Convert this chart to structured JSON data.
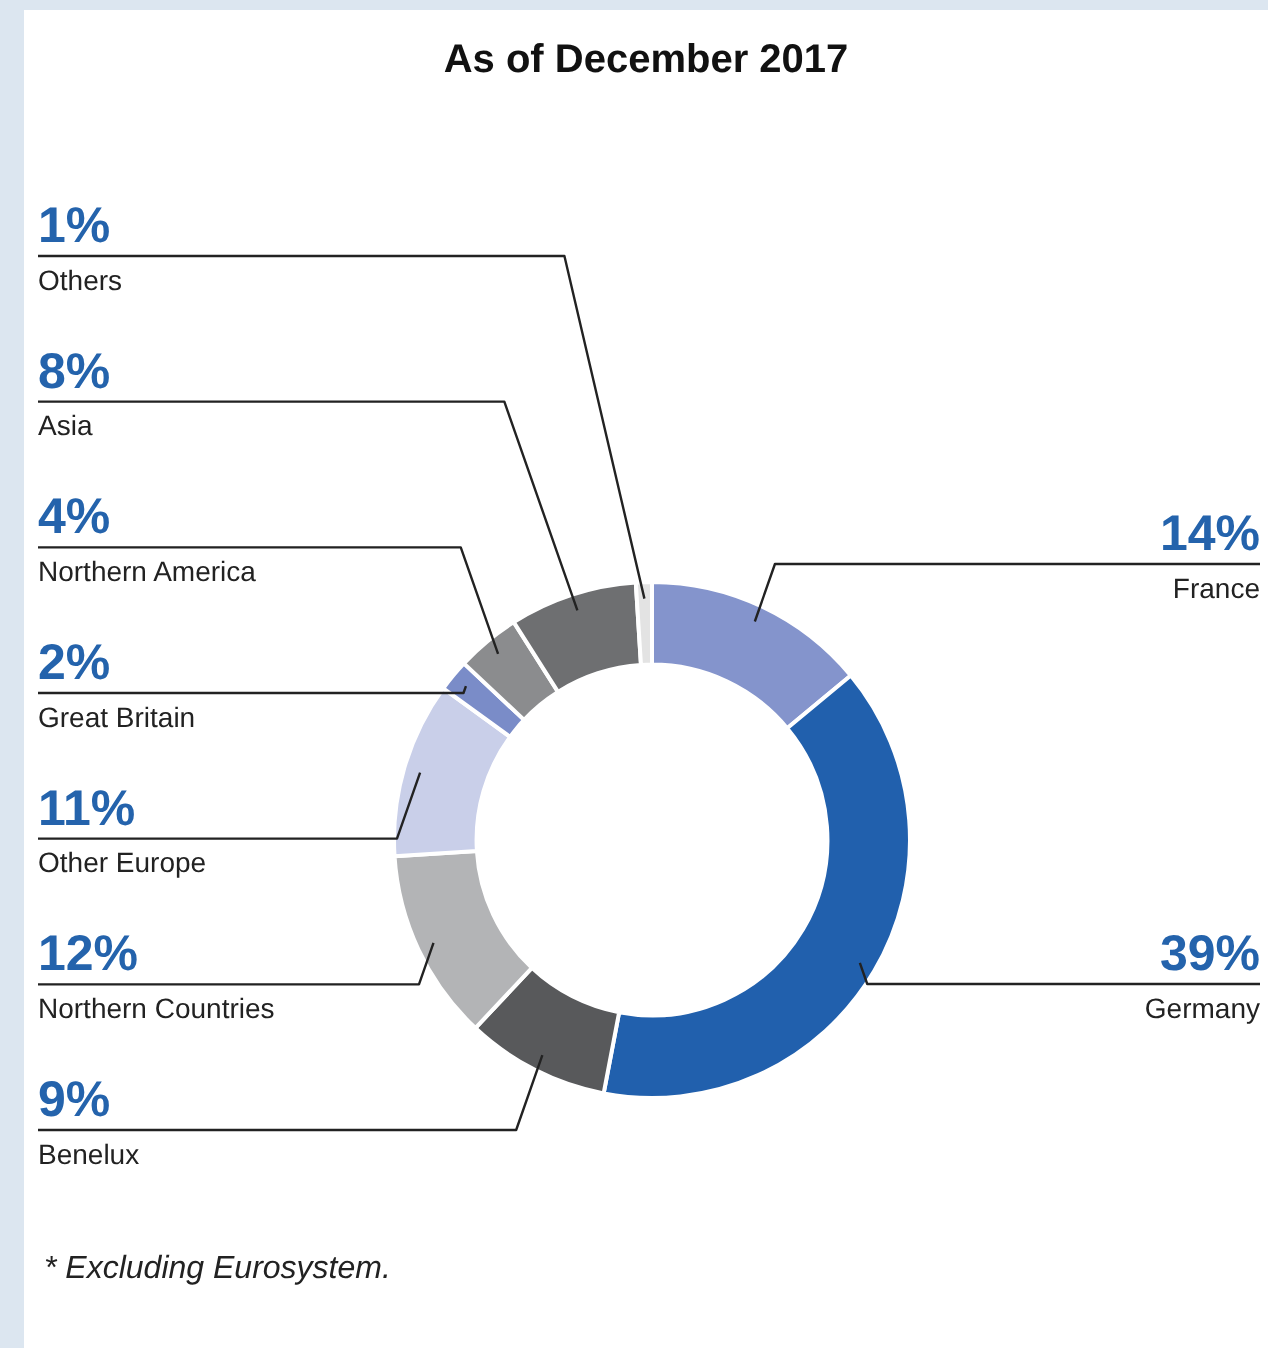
{
  "chart_data": {
    "type": "donut",
    "title": "As of December 2017",
    "categories": [
      "France",
      "Germany",
      "Benelux",
      "Northern Countries",
      "Other Europe",
      "Great Britain",
      "Northern America",
      "Asia",
      "Others"
    ],
    "values": [
      14,
      39,
      9,
      12,
      11,
      2,
      4,
      8,
      1
    ],
    "value_labels": [
      "14%",
      "39%",
      "9%",
      "12%",
      "11%",
      "2%",
      "4%",
      "8%",
      "1%"
    ],
    "colors": [
      "#8494cc",
      "#2160ad",
      "#58595b",
      "#b3b4b6",
      "#c9cfe9",
      "#7a8cc8",
      "#8b8c8e",
      "#6e6f71",
      "#e3e3e3"
    ],
    "annotations": [
      "* Excluding Eurosystem."
    ],
    "legend": false
  }
}
